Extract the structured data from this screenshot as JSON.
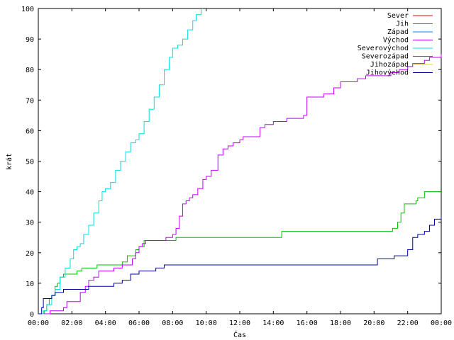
{
  "chart_data": {
    "type": "line",
    "xlabel": "Čas",
    "ylabel": "krát",
    "ylim": [
      0,
      100
    ],
    "xlim_hours": [
      0,
      24
    ],
    "x_tick_labels": [
      "00:00",
      "02:00",
      "04:00",
      "06:00",
      "08:00",
      "10:00",
      "12:00",
      "14:00",
      "16:00",
      "18:00",
      "20:00",
      "22:00",
      "00:00"
    ],
    "y_ticks": [
      0,
      10,
      20,
      30,
      40,
      50,
      60,
      70,
      80,
      90,
      100
    ],
    "legend_position": "top-right",
    "grid": false,
    "series": [
      {
        "name": "Sever",
        "color": "#ff0000",
        "hours": [],
        "values": []
      },
      {
        "name": "Jih",
        "color": "#00c000",
        "hours": [
          0,
          0.35,
          0.5,
          0.65,
          0.8,
          1.0,
          1.15,
          1.3,
          1.5,
          2.0,
          2.3,
          2.6,
          3.3,
          3.5,
          4.0,
          5.0,
          5.3,
          5.8,
          6.0,
          6.3,
          7.0,
          8.0,
          8.2,
          14.4,
          14.5,
          21.0,
          21.1,
          21.4,
          21.6,
          21.8,
          22.5,
          22.6,
          23.0,
          24.0
        ],
        "values": [
          0,
          1,
          3,
          5,
          6,
          9,
          10,
          12,
          13,
          13,
          14,
          15,
          15,
          16,
          16,
          17,
          19,
          21,
          22,
          24,
          24,
          24,
          25,
          25,
          27,
          27,
          28,
          30,
          33,
          36,
          37,
          38,
          40,
          40
        ]
      },
      {
        "name": "Západ",
        "color": "#0080ff",
        "hours": [],
        "values": []
      },
      {
        "name": "Východ",
        "color": "#c000ff",
        "hours": [
          0,
          0.7,
          0.8,
          1.5,
          1.7,
          2.0,
          2.5,
          2.8,
          3.0,
          3.3,
          3.6,
          4.0,
          4.5,
          5.0,
          5.3,
          5.6,
          5.8,
          6.0,
          6.2,
          6.4,
          7.5,
          7.6,
          8.0,
          8.2,
          8.4,
          8.6,
          8.8,
          9.0,
          9.2,
          9.5,
          9.8,
          10.0,
          10.3,
          10.7,
          11.0,
          11.3,
          11.6,
          12.0,
          12.2,
          12.4,
          13.0,
          13.2,
          13.5,
          14.0,
          14.8,
          15.5,
          15.8,
          16.0,
          17.0,
          17.6,
          18.0,
          19.0,
          19.5,
          20.0,
          21.0,
          21.5,
          22.0,
          22.3,
          23.0,
          23.3,
          24.0
        ],
        "values": [
          0,
          1,
          1,
          2,
          4,
          4,
          7,
          9,
          11,
          12,
          14,
          14,
          15,
          16,
          16,
          18,
          20,
          22,
          23,
          24,
          24,
          25,
          26,
          28,
          32,
          36,
          37,
          38,
          39,
          41,
          44,
          45,
          47,
          52,
          54,
          55,
          56,
          57,
          58,
          58,
          58,
          61,
          62,
          63,
          64,
          64,
          65,
          71,
          72,
          74,
          76,
          77,
          78,
          78,
          79,
          80,
          81,
          82,
          83,
          84,
          85
        ]
      },
      {
        "name": "Severovýchod",
        "color": "#00e0e0",
        "hours": [
          0,
          0.3,
          0.5,
          0.8,
          1.0,
          1.3,
          1.6,
          1.9,
          2.1,
          2.3,
          2.5,
          2.7,
          3.0,
          3.3,
          3.6,
          3.8,
          4.0,
          4.3,
          4.6,
          4.9,
          5.2,
          5.5,
          5.8,
          6.0,
          6.3,
          6.6,
          6.9,
          7.2,
          7.5,
          7.8,
          8.0,
          8.3,
          8.6,
          8.9,
          9.2,
          9.4,
          9.7
        ],
        "values": [
          0,
          1,
          3,
          6,
          8,
          12,
          15,
          18,
          21,
          22,
          23,
          26,
          29,
          33,
          37,
          40,
          41,
          43,
          47,
          50,
          53,
          56,
          57,
          59,
          63,
          67,
          71,
          75,
          80,
          84,
          87,
          88,
          90,
          93,
          96,
          98,
          100
        ]
      },
      {
        "name": "Severozápad",
        "color": "#c04000",
        "hours": [],
        "values": []
      },
      {
        "name": "Jihozápad",
        "color": "#e0e000",
        "hours": [],
        "values": []
      },
      {
        "name": "Jihovýchod",
        "color": "#0000a0",
        "hours": [
          0,
          0.2,
          0.3,
          0.8,
          1.0,
          1.5,
          2.0,
          2.5,
          3.0,
          4.0,
          4.5,
          5.0,
          5.5,
          6.0,
          6.5,
          7.0,
          7.5,
          20.0,
          20.2,
          21.0,
          21.2,
          21.6,
          22.0,
          22.3,
          22.6,
          23.0,
          23.3,
          23.6,
          24.0
        ],
        "values": [
          0,
          2,
          5,
          6,
          7,
          8,
          8,
          8,
          9,
          9,
          10,
          11,
          13,
          14,
          14,
          15,
          16,
          16,
          18,
          18,
          19,
          19,
          21,
          25,
          26,
          27,
          29,
          31,
          32
        ]
      }
    ]
  }
}
